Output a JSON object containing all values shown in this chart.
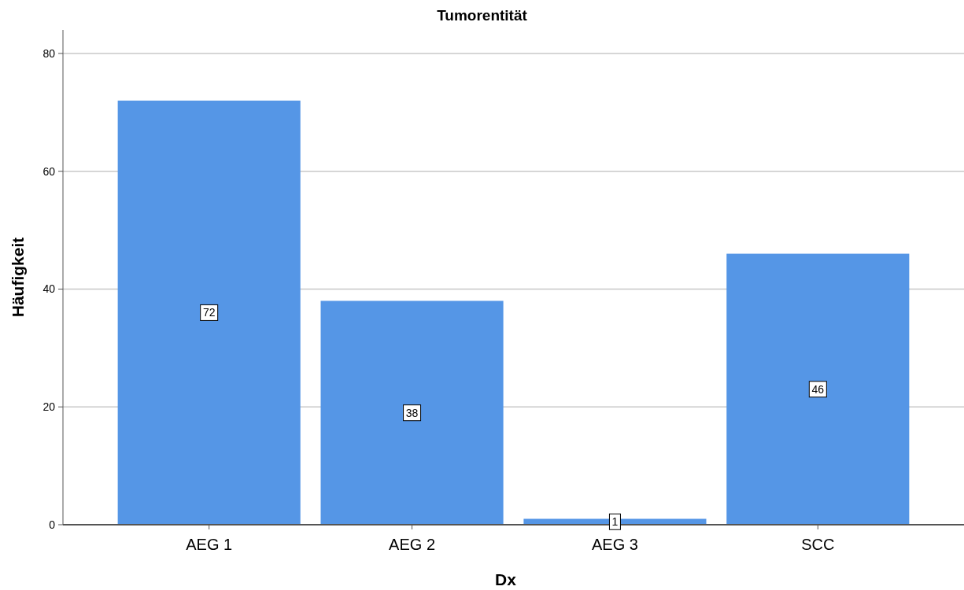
{
  "chart_data": {
    "type": "bar",
    "title": "Tumorentität",
    "xlabel": "Dx",
    "ylabel": "Häufigkeit",
    "categories": [
      "AEG 1",
      "AEG 2",
      "AEG 3",
      "SCC"
    ],
    "values": [
      72,
      38,
      1,
      46
    ],
    "color": "#5596e6",
    "ylim": [
      0,
      84
    ],
    "yticks": [
      0,
      20,
      40,
      60,
      80
    ],
    "grid": "y",
    "data_labels": true
  }
}
